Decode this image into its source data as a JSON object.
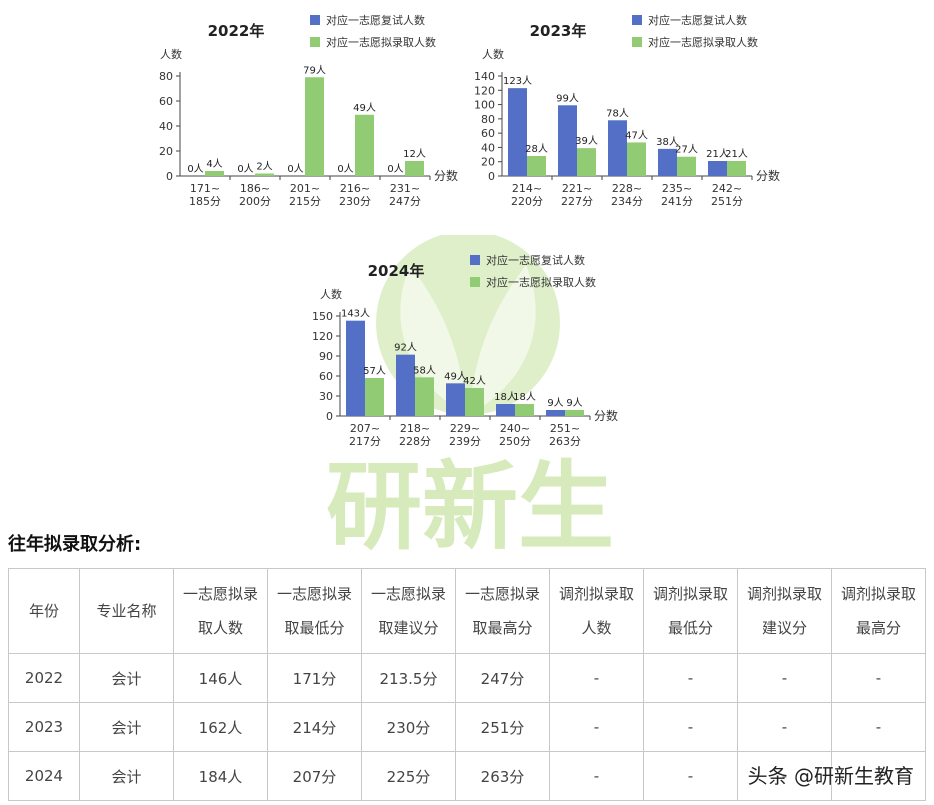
{
  "chart_data": [
    {
      "type": "bar",
      "title": "2022年",
      "ylabel": "人数",
      "xlabel": "分数",
      "ylim": [
        0,
        80
      ],
      "yticks": [
        0,
        20,
        40,
        60,
        80
      ],
      "categories": [
        "171~\n185分",
        "186~\n200分",
        "201~\n215分",
        "216~\n230分",
        "231~\n247分"
      ],
      "series": [
        {
          "name": "对应一志愿复试人数",
          "values": [
            0,
            0,
            0,
            0,
            0
          ],
          "labels": [
            "0人",
            "0人",
            "0人",
            "0人",
            "0人"
          ]
        },
        {
          "name": "对应一志愿拟录取人数",
          "values": [
            4,
            2,
            79,
            49,
            12
          ],
          "labels": [
            "4人",
            "2人",
            "79人",
            "49人",
            "12人"
          ]
        }
      ]
    },
    {
      "type": "bar",
      "title": "2023年",
      "ylabel": "人数",
      "xlabel": "分数",
      "ylim": [
        0,
        140
      ],
      "yticks": [
        0,
        20,
        40,
        60,
        80,
        100,
        120,
        140
      ],
      "categories": [
        "214~\n220分",
        "221~\n227分",
        "228~\n234分",
        "235~\n241分",
        "242~\n251分"
      ],
      "series": [
        {
          "name": "对应一志愿复试人数",
          "values": [
            123,
            99,
            78,
            38,
            21
          ],
          "labels": [
            "123人",
            "99人",
            "78人",
            "38人",
            "21人"
          ]
        },
        {
          "name": "对应一志愿拟录取人数",
          "values": [
            28,
            39,
            47,
            27,
            21
          ],
          "labels": [
            "28人",
            "39人",
            "47人",
            "27人",
            "21人"
          ]
        }
      ]
    },
    {
      "type": "bar",
      "title": "2024年",
      "ylabel": "人数",
      "xlabel": "分数",
      "ylim": [
        0,
        150
      ],
      "yticks": [
        0,
        30,
        60,
        90,
        120,
        150
      ],
      "categories": [
        "207~\n217分",
        "218~\n228分",
        "229~\n239分",
        "240~\n250分",
        "251~\n263分"
      ],
      "series": [
        {
          "name": "对应一志愿复试人数",
          "values": [
            143,
            92,
            49,
            18,
            9
          ],
          "labels": [
            "143人",
            "92人",
            "49人",
            "18人",
            "9人"
          ]
        },
        {
          "name": "对应一志愿拟录取人数",
          "values": [
            57,
            58,
            42,
            18,
            9
          ],
          "labels": [
            "57人",
            "58人",
            "42人",
            "18人",
            "9人"
          ]
        }
      ]
    }
  ],
  "colors": {
    "series1": "#5470c6",
    "series2": "#91cc75"
  },
  "section_title": "往年拟录取分析:",
  "table": {
    "headers": [
      "年份",
      "专业名称",
      "一志愿拟录\n取人数",
      "一志愿拟录\n取最低分",
      "一志愿拟录\n取建议分",
      "一志愿拟录\n取最高分",
      "调剂拟录取\n人数",
      "调剂拟录取\n最低分",
      "调剂拟录取\n建议分",
      "调剂拟录取\n最高分"
    ],
    "rows": [
      [
        "2022",
        "会计",
        "146人",
        "171分",
        "213.5分",
        "247分",
        "-",
        "-",
        "-",
        "-"
      ],
      [
        "2023",
        "会计",
        "162人",
        "214分",
        "230分",
        "251分",
        "-",
        "-",
        "-",
        "-"
      ],
      [
        "2024",
        "会计",
        "184人",
        "207分",
        "225分",
        "263分",
        "-",
        "-",
        "-",
        "-"
      ]
    ]
  },
  "watermark": {
    "text": "研新生",
    "icon": "leaf-logo-icon"
  },
  "footer": "头条 @研新生教育"
}
